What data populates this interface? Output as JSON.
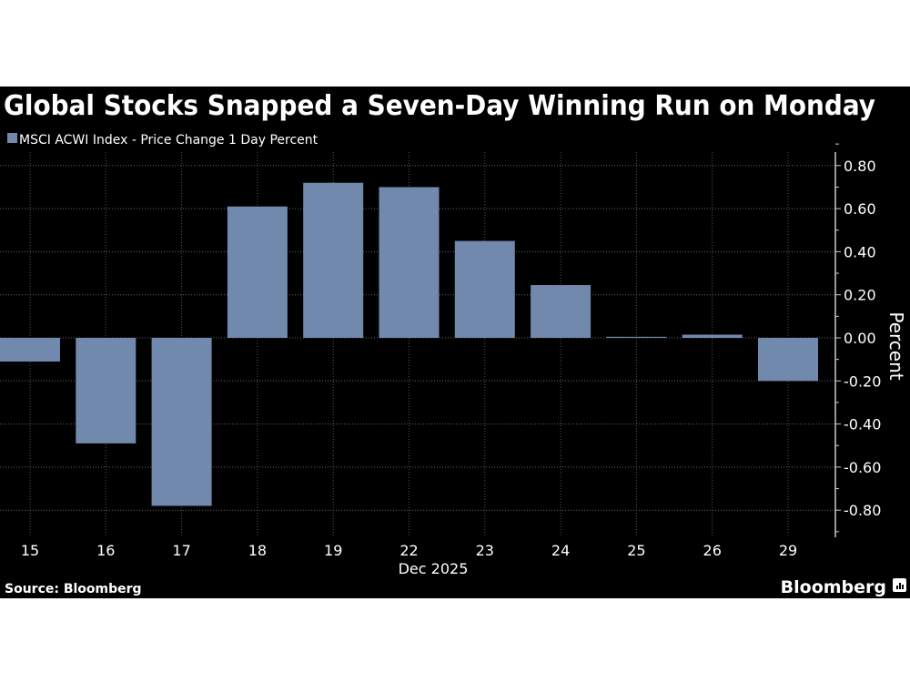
{
  "chart_data": {
    "type": "bar",
    "title": "Global Stocks Snapped a Seven-Day Winning Run on Monday",
    "legend": [
      "MSCI ACWI Index - Price Change 1 Day Percent"
    ],
    "legend_placement": "top-left",
    "categories": [
      "15",
      "16",
      "17",
      "18",
      "19",
      "22",
      "23",
      "24",
      "25",
      "26",
      "29"
    ],
    "series": [
      {
        "name": "MSCI ACWI Index - Price Change 1 Day Percent",
        "values": [
          -0.11,
          -0.49,
          -0.78,
          0.61,
          0.72,
          0.7,
          0.45,
          0.245,
          0.005,
          0.015,
          -0.2
        ],
        "color": "#7189ad"
      }
    ],
    "xlabel": "Dec 2025",
    "ylabel": "Percent",
    "ylim": [
      -0.9,
      0.9
    ],
    "yticks": [
      "0.80",
      "0.60",
      "0.40",
      "0.20",
      "0.00",
      "-0.20",
      "-0.40",
      "-0.60",
      "-0.80"
    ],
    "grid": true,
    "y_axis_side": "right"
  },
  "source": "Source: Bloomberg",
  "brand": "Bloomberg",
  "colors": {
    "background": "#000000",
    "bar": "#7189ad",
    "text": "#ffffff"
  }
}
